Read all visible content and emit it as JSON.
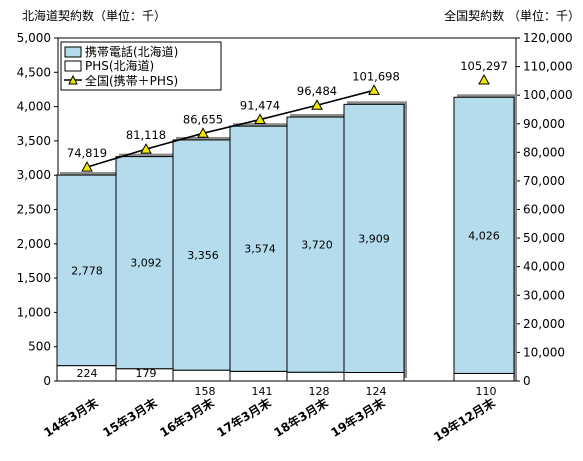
{
  "chart_data": {
    "type": "bar",
    "y_left_label": "北海道契約数（単位：千）",
    "y_right_label": "全国契約数 （単位：千）",
    "ylim_left": [
      0,
      5000
    ],
    "ylim_right": [
      0,
      120000
    ],
    "y_left_ticks": [
      "0",
      "500",
      "1,000",
      "1,500",
      "2,000",
      "2,500",
      "3,000",
      "3,500",
      "4,000",
      "4,500",
      "5,000"
    ],
    "y_right_ticks": [
      "0",
      "10,000",
      "20,000",
      "30,000",
      "40,000",
      "50,000",
      "60,000",
      "70,000",
      "80,000",
      "90,000",
      "100,000",
      "110,000",
      "120,000"
    ],
    "categories": [
      "14年3月末",
      "15年3月末",
      "16年3月末",
      "17年3月末",
      "18年3月末",
      "19年3月末",
      "19年12月末"
    ],
    "series": [
      {
        "name": "携帯電話(北海道)",
        "values": [
          2778,
          3092,
          3356,
          3574,
          3720,
          3909,
          4026
        ],
        "labels": [
          "2,778",
          "3,092",
          "3,356",
          "3,574",
          "3,720",
          "3,909",
          "4,026"
        ],
        "color": "#b5dcec"
      },
      {
        "name": "PHS(北海道)",
        "values": [
          224,
          179,
          158,
          141,
          128,
          124,
          110
        ],
        "labels": [
          "224",
          "179",
          "158",
          "141",
          "128",
          "124",
          "110"
        ],
        "color": "#ffffff"
      },
      {
        "name": "全国(携帯＋PHS)",
        "values": [
          74819,
          81118,
          86655,
          91474,
          96484,
          101698,
          105297
        ],
        "labels": [
          "74,819",
          "81,118",
          "86,655",
          "91,474",
          "96,484",
          "101,698",
          "105,297"
        ],
        "color": "#000000",
        "marker_color": "#f2e600"
      }
    ],
    "legend_position": "top-left",
    "grid": false
  }
}
